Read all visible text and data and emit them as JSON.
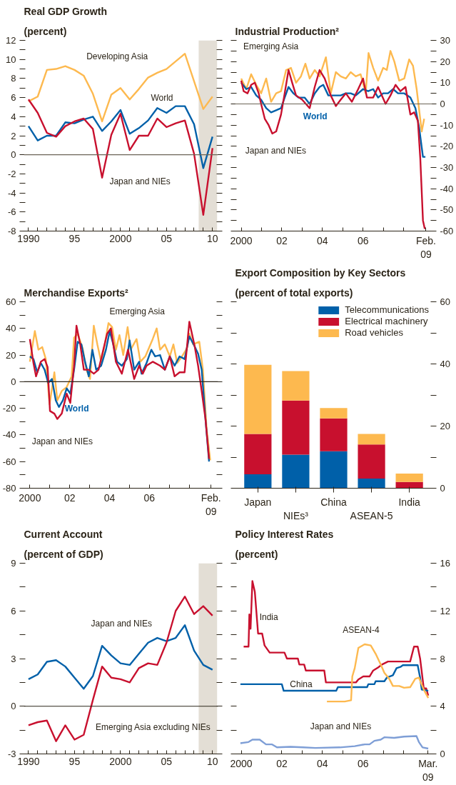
{
  "chart_data": [
    {
      "type": "line",
      "title": "Real GDP Growth",
      "subtitle": "(percent)",
      "x": [
        1990,
        1991,
        1992,
        1993,
        1994,
        1995,
        1996,
        1997,
        1998,
        1999,
        2000,
        2001,
        2002,
        2003,
        2004,
        2005,
        2006,
        2007,
        2008,
        2009,
        2010
      ],
      "series": [
        {
          "name": "Developing Asia",
          "color": "#fdb94f",
          "values": [
            5.6,
            6.1,
            8.9,
            9.0,
            9.3,
            8.9,
            8.3,
            6.4,
            3.5,
            6.3,
            7.0,
            5.8,
            6.9,
            8.1,
            8.6,
            9.0,
            9.8,
            10.6,
            7.7,
            4.8,
            6.1
          ]
        },
        {
          "name": "World",
          "color": "#0060a9",
          "values": [
            3.0,
            1.5,
            2.0,
            2.0,
            3.4,
            3.3,
            3.7,
            4.0,
            2.5,
            3.5,
            4.7,
            2.2,
            2.8,
            3.6,
            4.9,
            4.4,
            5.1,
            5.1,
            3.2,
            -1.4,
            1.9
          ]
        },
        {
          "name": "Japan and NIEs",
          "color": "#c8102e",
          "values": [
            5.8,
            4.4,
            2.3,
            1.9,
            3.0,
            3.5,
            3.8,
            2.7,
            -2.4,
            2.1,
            4.3,
            0.5,
            2.0,
            2.0,
            3.8,
            2.9,
            3.3,
            3.6,
            0.1,
            -6.3,
            0.7
          ]
        }
      ],
      "xlim": [
        1989.5,
        2010.6
      ],
      "ylim": [
        -8,
        12
      ],
      "xticks": [
        {
          "value": 1990,
          "label": "1990"
        },
        {
          "value": 1991,
          "label": null
        },
        {
          "value": 1992,
          "label": null
        },
        {
          "value": 1993,
          "label": null
        },
        {
          "value": 1994,
          "label": null
        },
        {
          "value": 1995,
          "label": "95"
        },
        {
          "value": 1996,
          "label": null
        },
        {
          "value": 1997,
          "label": null
        },
        {
          "value": 1998,
          "label": null
        },
        {
          "value": 1999,
          "label": null
        },
        {
          "value": 2000,
          "label": "2000"
        },
        {
          "value": 2001,
          "label": null
        },
        {
          "value": 2002,
          "label": null
        },
        {
          "value": 2003,
          "label": null
        },
        {
          "value": 2004,
          "label": null
        },
        {
          "value": 2005,
          "label": "05"
        },
        {
          "value": 2006,
          "label": null
        },
        {
          "value": 2007,
          "label": null
        },
        {
          "value": 2008,
          "label": null
        },
        {
          "value": 2009,
          "label": null
        },
        {
          "value": 2010,
          "label": "10"
        }
      ],
      "yticks": [
        -8,
        -6,
        -4,
        -2,
        0,
        2,
        4,
        6,
        8,
        10,
        12,
        {
          "value": -7,
          "label": null
        },
        {
          "value": -5,
          "label": null
        },
        {
          "value": -3,
          "label": null
        },
        {
          "value": -1,
          "label": null
        },
        {
          "value": 1,
          "label": null
        },
        {
          "value": 3,
          "label": null
        },
        {
          "value": 5,
          "label": null
        },
        {
          "value": 7,
          "label": null
        },
        {
          "value": 9,
          "label": null
        },
        {
          "value": 11,
          "label": null
        }
      ],
      "ref_lines": [
        {
          "axis": "y",
          "value": 0,
          "color": "#6b6356"
        }
      ],
      "bands": [
        {
          "axis": "x",
          "from": 2008.5,
          "to": 2010.5,
          "color": "#e3ded5"
        }
      ]
    },
    {
      "type": "line",
      "title": "Industrial Production²",
      "series": [
        {
          "name": "Emerging Asia",
          "color": "#fdb94f",
          "x": [
            2000.0,
            2000.25,
            2000.49,
            2000.74,
            2000.98,
            2001.23,
            2001.47,
            2001.72,
            2001.96,
            2002.21,
            2002.45,
            2002.7,
            2002.94,
            2003.16,
            2003.37,
            2003.62,
            2003.86,
            2004.17,
            2004.41,
            2004.66,
            2004.9,
            2005.15,
            2005.39,
            2005.64,
            2005.88,
            2006.13,
            2006.27,
            2006.5,
            2006.74,
            2006.99,
            2007.17,
            2007.35,
            2007.54,
            2007.78,
            2008.03,
            2008.27,
            2008.46,
            2008.64,
            2008.89,
            2009.01
          ],
          "values": [
            12,
            7,
            14,
            9,
            5,
            12,
            1,
            5,
            6,
            16,
            17,
            10,
            13,
            19,
            12,
            16,
            13,
            22,
            5,
            15,
            13,
            12,
            15,
            13,
            14,
            5,
            24,
            17,
            11,
            17,
            16,
            25,
            20,
            11,
            12,
            21,
            18,
            7,
            -13,
            -7
          ]
        },
        {
          "name": "World",
          "color": "#0060a9",
          "x": [
            2000.0,
            2000.25,
            2000.49,
            2000.74,
            2000.98,
            2001.23,
            2001.47,
            2001.72,
            2001.96,
            2002.14,
            2002.33,
            2002.57,
            2002.82,
            2003.12,
            2003.37,
            2003.62,
            2003.86,
            2004.04,
            2004.29,
            2004.66,
            2004.9,
            2005.15,
            2005.39,
            2005.64,
            2006.0,
            2006.25,
            2006.5,
            2006.74,
            2006.99,
            2007.23,
            2007.48,
            2007.72,
            2008.03,
            2008.33,
            2008.58,
            2008.76,
            2008.95,
            2009.07
          ],
          "values": [
            10,
            7,
            8,
            4,
            2,
            -2,
            -4,
            -3,
            -2,
            3,
            8,
            5,
            3,
            3,
            0,
            5,
            8,
            9,
            4,
            4,
            4,
            5,
            5,
            4,
            7,
            6,
            7,
            3,
            5,
            5,
            7,
            5,
            5,
            3,
            -2,
            -11,
            -25,
            -25
          ]
        },
        {
          "name": "Japan and NIEs",
          "color": "#c8102e",
          "x": [
            2000.0,
            2000.12,
            2000.31,
            2000.49,
            2000.67,
            2000.86,
            2000.98,
            2001.16,
            2001.35,
            2001.53,
            2001.72,
            2001.96,
            2002.14,
            2002.33,
            2002.51,
            2002.7,
            2003.0,
            2003.37,
            2003.62,
            2003.86,
            2004.11,
            2004.41,
            2004.66,
            2004.9,
            2005.15,
            2005.45,
            2005.76,
            2006.0,
            2006.19,
            2006.5,
            2006.74,
            2007.11,
            2007.35,
            2007.6,
            2007.84,
            2008.09,
            2008.33,
            2008.52,
            2008.7,
            2008.82,
            2008.95,
            2009.04
          ],
          "values": [
            11,
            6,
            5,
            9,
            10,
            5,
            0,
            -7,
            -10,
            -14,
            -13,
            -5,
            5,
            16,
            10,
            4,
            2,
            -2,
            8,
            16,
            12,
            4,
            -1,
            2,
            5,
            1,
            7,
            12,
            3,
            3,
            8,
            0,
            4,
            9,
            6,
            8,
            -5,
            -4,
            -8,
            -26,
            -55,
            -59
          ]
        }
      ],
      "xlim": [
        1999.7,
        2009.4
      ],
      "ylim": [
        -60,
        30
      ],
      "xticks": [
        {
          "value": 2000,
          "label": "2000"
        },
        {
          "value": 2002,
          "label": "02"
        },
        {
          "value": 2004,
          "label": "04"
        },
        {
          "value": 2006,
          "label": "06"
        },
        {
          "value": 2009.1,
          "label": "Feb. 09"
        },
        {
          "value": 2001,
          "label": null
        },
        {
          "value": 2003,
          "label": null
        },
        {
          "value": 2005,
          "label": null
        },
        {
          "value": 2007,
          "label": null
        },
        {
          "value": 2008,
          "label": null
        }
      ],
      "yticks": [
        -60,
        -50,
        -40,
        -30,
        -20,
        -10,
        0,
        10,
        20,
        30,
        {
          "value": -55,
          "label": null
        },
        {
          "value": -45,
          "label": null
        },
        {
          "value": -35,
          "label": null
        },
        {
          "value": -25,
          "label": null
        },
        {
          "value": -15,
          "label": null
        },
        {
          "value": -5,
          "label": null
        },
        {
          "value": 5,
          "label": null
        },
        {
          "value": 15,
          "label": null
        },
        {
          "value": 25,
          "label": null
        }
      ],
      "ref_lines": [
        {
          "axis": "y",
          "value": 0,
          "color": "#6b6356"
        }
      ]
    },
    {
      "type": "line",
      "title": "Merchandise Exports²",
      "series": [
        {
          "name": "Emerging Asia",
          "color": "#fdb94f",
          "x": [
            2000.0,
            2000.25,
            2000.43,
            2000.62,
            2000.8,
            2000.99,
            2001.23,
            2001.38,
            2001.6,
            2001.85,
            2002.1,
            2002.22,
            2002.4,
            2002.65,
            2002.84,
            2003.02,
            2003.21,
            2003.39,
            2003.58,
            2003.76,
            2003.95,
            2004.13,
            2004.32,
            2004.5,
            2004.69,
            2004.91,
            2005.06,
            2005.36,
            2005.55,
            2005.8,
            2006.17,
            2006.37,
            2006.54,
            2006.78,
            2007.03,
            2007.21,
            2007.4,
            2007.64,
            2007.89,
            2008.01,
            2008.2,
            2008.51,
            2008.69,
            2008.88,
            2009.06
          ],
          "values": [
            15,
            38,
            24,
            26,
            17,
            -17,
            7,
            -14,
            -7,
            -4,
            4,
            33,
            36,
            25,
            9,
            2,
            42,
            28,
            15,
            28,
            44,
            41,
            24,
            35,
            20,
            41,
            24,
            32,
            15,
            19,
            32,
            40,
            24,
            28,
            19,
            28,
            14,
            19,
            25,
            36,
            28,
            30,
            9,
            -36,
            -59
          ]
        },
        {
          "name": "World",
          "color": "#0060a9",
          "x": [
            2000.0,
            2000.18,
            2000.37,
            2000.55,
            2000.74,
            2000.92,
            2001.11,
            2001.3,
            2001.46,
            2001.66,
            2001.85,
            2002.03,
            2002.22,
            2002.4,
            2002.59,
            2002.77,
            2002.96,
            2003.14,
            2003.33,
            2003.58,
            2003.82,
            2004.01,
            2004.19,
            2004.38,
            2004.62,
            2004.87,
            2005.01,
            2005.24,
            2005.49,
            2005.61,
            2005.86,
            2006.1,
            2006.29,
            2006.54,
            2006.78,
            2007.03,
            2007.27,
            2007.52,
            2007.77,
            2008.01,
            2008.26,
            2008.45,
            2008.63,
            2008.82,
            2009.0
          ],
          "values": [
            19,
            17,
            7,
            14,
            9,
            -1,
            2,
            -14,
            -19,
            -14,
            -5,
            -9,
            9,
            30,
            28,
            15,
            4,
            24,
            9,
            12,
            24,
            38,
            28,
            15,
            12,
            17,
            31,
            9,
            15,
            6,
            14,
            24,
            19,
            20,
            9,
            19,
            12,
            19,
            17,
            34,
            27,
            21,
            9,
            -28,
            -60
          ]
        },
        {
          "name": "Japan and NIEs",
          "color": "#c8102e",
          "x": [
            2000.0,
            2000.18,
            2000.31,
            2000.55,
            2000.74,
            2000.89,
            2001.01,
            2001.23,
            2001.38,
            2001.6,
            2001.85,
            2002.03,
            2002.22,
            2002.34,
            2002.53,
            2002.71,
            2002.96,
            2003.21,
            2003.45,
            2003.88,
            2004.07,
            2004.32,
            2004.62,
            2004.93,
            2005.24,
            2005.49,
            2005.67,
            2005.86,
            2006.17,
            2006.54,
            2006.78,
            2007.03,
            2007.27,
            2007.52,
            2007.77,
            2008.01,
            2008.26,
            2008.45,
            2008.63,
            2008.82,
            2009.0
          ],
          "values": [
            32,
            14,
            4,
            15,
            17,
            11,
            -22,
            -24,
            -28,
            -24,
            -9,
            -16,
            12,
            42,
            28,
            9,
            9,
            6,
            9,
            36,
            40,
            15,
            6,
            24,
            2,
            12,
            6,
            12,
            15,
            12,
            9,
            19,
            4,
            7,
            7,
            45,
            28,
            12,
            -7,
            -28,
            -58
          ]
        }
      ],
      "xlim": [
        1999.7,
        2009.45
      ],
      "ylim": [
        -80,
        60
      ],
      "xticks": [
        {
          "value": 2000,
          "label": "2000"
        },
        {
          "value": 2002,
          "label": "02"
        },
        {
          "value": 2004,
          "label": "04"
        },
        {
          "value": 2006,
          "label": "06"
        },
        {
          "value": 2009.1,
          "label": "Feb. 09"
        },
        {
          "value": 2001,
          "label": null
        },
        {
          "value": 2003,
          "label": null
        },
        {
          "value": 2005,
          "label": null
        },
        {
          "value": 2007,
          "label": null
        },
        {
          "value": 2008,
          "label": null
        }
      ],
      "yticks": [
        -80,
        -60,
        -40,
        -20,
        0,
        20,
        40,
        60,
        {
          "value": -70,
          "label": null
        },
        {
          "value": -50,
          "label": null
        },
        {
          "value": -30,
          "label": null
        },
        {
          "value": -10,
          "label": null
        },
        {
          "value": 10,
          "label": null
        },
        {
          "value": 30,
          "label": null
        },
        {
          "value": 50,
          "label": null
        }
      ],
      "ref_lines": [
        {
          "axis": "y",
          "value": 0,
          "color": "#2b2418"
        }
      ]
    },
    {
      "type": "bar",
      "title": "Export Composition by Key Sectors",
      "subtitle": "(percent of total exports)",
      "stacked": true,
      "legend": "top right",
      "categories": [
        "Japan",
        "NIEs³",
        "China",
        "ASEAN-5",
        "India"
      ],
      "series": [
        {
          "name": "Telecommunications",
          "color": "#0060a9",
          "values": [
            4.5,
            10.8,
            11.9,
            3.1,
            0
          ]
        },
        {
          "name": "Electrical machinery",
          "color": "#c8102e",
          "values": [
            13,
            17.4,
            10.6,
            11,
            2
          ]
        },
        {
          "name": "Road vehicles",
          "color": "#fdb94f",
          "values": [
            22.2,
            9.5,
            3.3,
            3.4,
            2.7
          ]
        }
      ],
      "ylim": [
        0,
        60
      ],
      "yticks": [
        0,
        20,
        40,
        60,
        {
          "value": 10,
          "label": null
        },
        {
          "value": 30,
          "label": null
        },
        {
          "value": 50,
          "label": null
        }
      ]
    },
    {
      "type": "line",
      "title": "Current Account",
      "subtitle": "(percent of GDP)",
      "x": [
        1990,
        1991,
        1992,
        1993,
        1994,
        1995,
        1996,
        1997,
        1998,
        1999,
        2000,
        2001,
        2002,
        2003,
        2004,
        2005,
        2006,
        2007,
        2008,
        2009,
        2010
      ],
      "series": [
        {
          "name": "Japan and NIEs",
          "color": "#0060a9",
          "values": [
            1.7,
            2.0,
            2.8,
            2.9,
            2.5,
            1.8,
            1.1,
            1.9,
            3.8,
            3.2,
            2.7,
            2.6,
            3.3,
            4.0,
            4.3,
            4.1,
            4.3,
            5.1,
            3.5,
            2.6,
            2.3
          ]
        },
        {
          "name": "Emerging Asia excluding NIEs",
          "color": "#c8102e",
          "values": [
            -1.2,
            -1.0,
            -0.9,
            -2.2,
            -1.2,
            -2.1,
            -1.8,
            0.4,
            2.5,
            1.8,
            1.7,
            1.5,
            2.4,
            2.7,
            2.6,
            4.0,
            6.0,
            6.9,
            5.8,
            6.3,
            5.7
          ]
        }
      ],
      "xlim": [
        1989.5,
        2010.6
      ],
      "ylim": [
        -3,
        9
      ],
      "xticks": [
        {
          "value": 1990,
          "label": "1990"
        },
        {
          "value": 1991,
          "label": null
        },
        {
          "value": 1992,
          "label": null
        },
        {
          "value": 1993,
          "label": null
        },
        {
          "value": 1994,
          "label": null
        },
        {
          "value": 1995,
          "label": "95"
        },
        {
          "value": 1996,
          "label": null
        },
        {
          "value": 1997,
          "label": null
        },
        {
          "value": 1998,
          "label": null
        },
        {
          "value": 1999,
          "label": null
        },
        {
          "value": 2000,
          "label": "2000"
        },
        {
          "value": 2001,
          "label": null
        },
        {
          "value": 2002,
          "label": null
        },
        {
          "value": 2003,
          "label": null
        },
        {
          "value": 2004,
          "label": null
        },
        {
          "value": 2005,
          "label": "05"
        },
        {
          "value": 2006,
          "label": null
        },
        {
          "value": 2007,
          "label": null
        },
        {
          "value": 2008,
          "label": null
        },
        {
          "value": 2009,
          "label": null
        },
        {
          "value": 2010,
          "label": "10"
        }
      ],
      "yticks": [
        -3,
        0,
        3,
        6,
        9,
        {
          "value": -1.5,
          "label": null
        },
        {
          "value": 1.5,
          "label": null
        },
        {
          "value": 4.5,
          "label": null
        },
        {
          "value": 7.5,
          "label": null
        }
      ],
      "ref_lines": [
        {
          "axis": "y",
          "value": 0,
          "color": "#2b2418"
        }
      ],
      "bands": [
        {
          "axis": "x",
          "from": 2008.5,
          "to": 2010.5,
          "color": "#e3ded5"
        }
      ]
    },
    {
      "type": "line",
      "title": "Policy Interest Rates",
      "subtitle": "(percent)",
      "series": [
        {
          "name": "India",
          "color": "#c8102e",
          "x": [
            2000.12,
            2000.36,
            2000.4,
            2000.46,
            2000.55,
            2000.67,
            2000.83,
            2001.03,
            2001.15,
            2001.4,
            2002.13,
            2002.25,
            2002.79,
            2002.86,
            2003.1,
            2003.18,
            2004.09,
            2004.17,
            2005.65,
            2005.77,
            2006.01,
            2006.32,
            2006.5,
            2006.74,
            2006.93,
            2007.23,
            2008.32,
            2008.51,
            2008.69,
            2008.81,
            2008.99,
            2009.11,
            2009.21
          ],
          "values": [
            9.0,
            9.0,
            11.7,
            10.5,
            14.5,
            13.6,
            10.1,
            10.1,
            9.1,
            8.5,
            8.5,
            8.0,
            8.0,
            7.5,
            7.5,
            7.0,
            7.0,
            6.0,
            6.0,
            6.25,
            6.5,
            6.5,
            7.0,
            7.25,
            7.5,
            7.75,
            7.75,
            9.0,
            9.0,
            8.0,
            5.5,
            5.5,
            4.9
          ]
        },
        {
          "name": "China",
          "color": "#0060a9",
          "x": [
            1999.96,
            2002.0,
            2002.09,
            2004.68,
            2004.76,
            2006.2,
            2006.26,
            2006.56,
            2006.62,
            2007.05,
            2007.17,
            2007.47,
            2007.65,
            2007.84,
            2007.96,
            2008.69,
            2008.81,
            2008.89,
            2009.21
          ],
          "values": [
            5.85,
            5.85,
            5.3,
            5.3,
            5.6,
            5.6,
            5.85,
            5.85,
            6.1,
            6.1,
            6.4,
            6.6,
            7.2,
            7.3,
            7.45,
            7.45,
            6.4,
            5.4,
            5.3
          ]
        },
        {
          "name": "ASEAN-4",
          "color": "#fdb94f",
          "x": [
            2004.22,
            2005.1,
            2005.41,
            2005.47,
            2005.59,
            2005.77,
            2006.08,
            2006.38,
            2006.62,
            2006.87,
            2007.05,
            2007.29,
            2007.47,
            2007.78,
            2008.02,
            2008.32,
            2008.57,
            2008.75,
            2008.99,
            2009.21
          ],
          "values": [
            4.4,
            4.4,
            4.5,
            6.5,
            7.2,
            8.9,
            9.2,
            9.1,
            8.4,
            7.5,
            6.8,
            6.3,
            5.7,
            5.7,
            5.55,
            5.6,
            6.3,
            6.4,
            5.4,
            4.7
          ]
        },
        {
          "name": "Japan and NIEs",
          "color": "#7e9ed6",
          "x": [
            1999.96,
            2000.36,
            2000.55,
            2000.91,
            2001.22,
            2001.52,
            2001.76,
            2002.43,
            2003.04,
            2003.65,
            2004.86,
            2005.59,
            2006.08,
            2006.32,
            2006.56,
            2006.87,
            2007.05,
            2007.53,
            2008.02,
            2008.63,
            2008.75,
            2008.93,
            2009.21
          ],
          "values": [
            0.9,
            1.0,
            1.2,
            1.2,
            0.8,
            0.8,
            0.55,
            0.6,
            0.55,
            0.5,
            0.55,
            0.65,
            0.8,
            0.8,
            1.1,
            1.2,
            1.4,
            1.35,
            1.45,
            1.5,
            1.0,
            0.55,
            0.45
          ]
        }
      ],
      "xlim": [
        1999.7,
        2009.4
      ],
      "ylim": [
        0,
        16
      ],
      "xticks": [
        {
          "value": 2000,
          "label": "2000"
        },
        {
          "value": 2002,
          "label": "02"
        },
        {
          "value": 2004,
          "label": "04"
        },
        {
          "value": 2006,
          "label": "06"
        },
        {
          "value": 2009.2,
          "label": "Mar. 09"
        },
        {
          "value": 2001,
          "label": null
        },
        {
          "value": 2003,
          "label": null
        },
        {
          "value": 2005,
          "label": null
        },
        {
          "value": 2007,
          "label": null
        },
        {
          "value": 2008,
          "label": null
        }
      ],
      "yticks": [
        0,
        4,
        8,
        12,
        16,
        {
          "value": 2,
          "label": null
        },
        {
          "value": 6,
          "label": null
        },
        {
          "value": 10,
          "label": null
        },
        {
          "value": 14,
          "label": null
        }
      ]
    }
  ]
}
